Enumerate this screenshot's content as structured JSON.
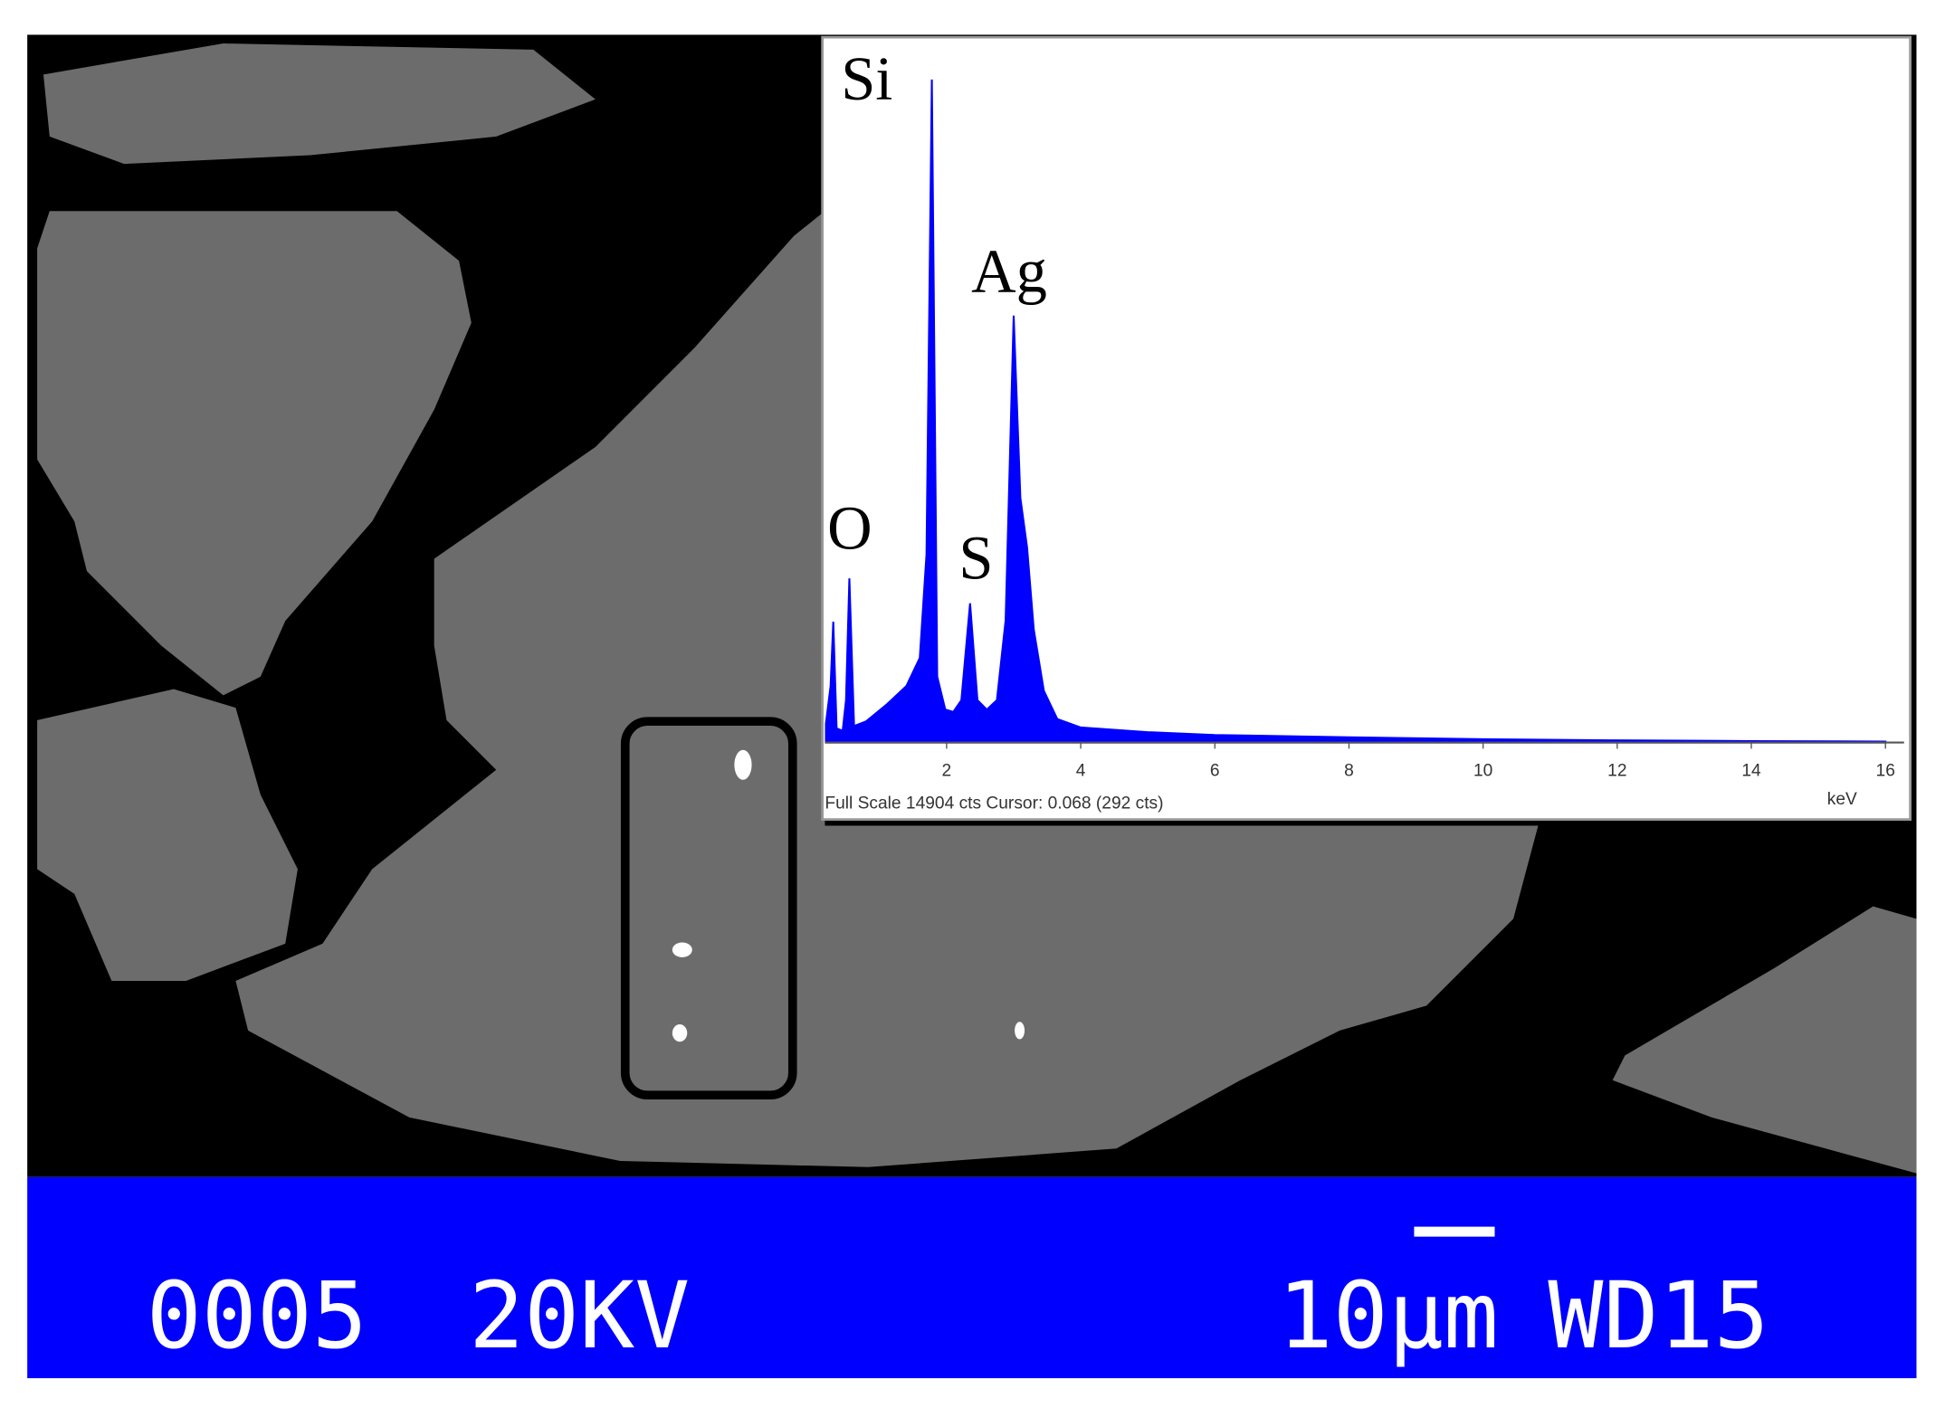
{
  "chart_data": {
    "type": "area",
    "x": [
      0.2,
      0.27,
      0.31,
      0.36,
      0.45,
      0.5,
      0.55,
      0.62,
      0.8,
      1.1,
      1.4,
      1.6,
      1.7,
      1.78,
      1.86,
      1.98,
      2.1,
      2.22,
      2.35,
      2.46,
      2.6,
      2.75,
      2.88,
      3.0,
      3.1,
      3.2,
      3.3,
      3.45,
      3.65,
      4.0,
      5.0,
      6.0,
      8.0,
      10.0,
      12.0,
      14.0,
      16.0
    ],
    "values": [
      400,
      1200,
      2570,
      300,
      250,
      900,
      3490,
      350,
      450,
      800,
      1200,
      1800,
      4000,
      14100,
      1400,
      700,
      650,
      900,
      2960,
      900,
      700,
      900,
      2600,
      9080,
      5200,
      4150,
      2400,
      1100,
      500,
      320,
      220,
      160,
      110,
      70,
      45,
      30,
      20
    ],
    "color": "#0000ff",
    "xlim": [
      0,
      16
    ],
    "ylim": [
      0,
      15000
    ],
    "xticks": [
      2,
      4,
      6,
      8,
      10,
      12,
      14,
      16
    ],
    "x_label": "keV",
    "footer": "Full Scale 14904 cts Cursor: 0.068 (292 cts)",
    "annotations": [
      "O",
      "Si",
      "S",
      "Ag"
    ]
  },
  "sem_info": {
    "magnification": "0005",
    "voltage": "20KV",
    "scale": "10µm",
    "working_distance": "WD15"
  }
}
